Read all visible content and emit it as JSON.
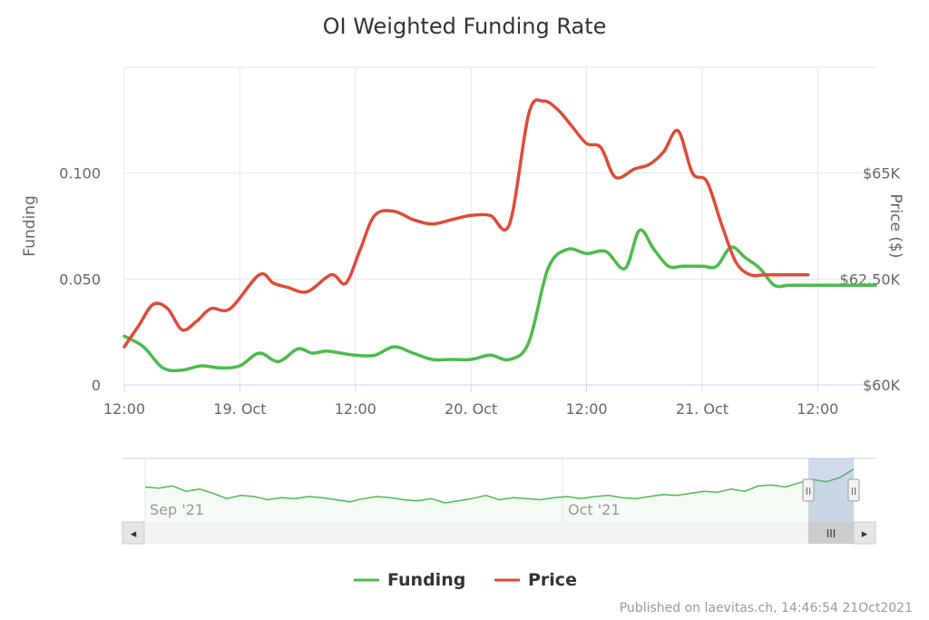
{
  "chart_data": {
    "type": "line",
    "title": "OI Weighted Funding Rate",
    "x_tick_labels": [
      "12:00",
      "19. Oct",
      "12:00",
      "20. Oct",
      "12:00",
      "21. Oct",
      "12:00"
    ],
    "y_left": {
      "label": "Funding",
      "ticks": [
        "0",
        "0.050",
        "0.100"
      ],
      "range": [
        0,
        0.15
      ]
    },
    "y_right": {
      "label": "Price ($)",
      "ticks": [
        "$60K",
        "$62.50K",
        "$65K"
      ],
      "range": [
        60000,
        67500
      ]
    },
    "x_range_hours": [
      0,
      78
    ],
    "series": [
      {
        "name": "Funding",
        "color": "#4cbb4c",
        "axis": "left",
        "x_hours": [
          0,
          2,
          4,
          6,
          8,
          10,
          12,
          14,
          16,
          18,
          19.5,
          21,
          22.5,
          24,
          26,
          28,
          30,
          32,
          34,
          36,
          38,
          40,
          42,
          44,
          46,
          48,
          50,
          52,
          53.5,
          55,
          56.5,
          58,
          60,
          61.5,
          63,
          64.5,
          66,
          67.5,
          69,
          70.5,
          72,
          74,
          76,
          78
        ],
        "values": [
          0.023,
          0.018,
          0.008,
          0.007,
          0.009,
          0.008,
          0.009,
          0.015,
          0.011,
          0.017,
          0.015,
          0.016,
          0.015,
          0.014,
          0.014,
          0.018,
          0.015,
          0.012,
          0.012,
          0.012,
          0.014,
          0.012,
          0.02,
          0.055,
          0.064,
          0.062,
          0.063,
          0.055,
          0.073,
          0.064,
          0.056,
          0.056,
          0.056,
          0.056,
          0.065,
          0.06,
          0.055,
          0.047,
          0.047,
          0.047,
          0.047,
          0.047,
          0.047,
          0.047
        ]
      },
      {
        "name": "Price",
        "color": "#dd4b39",
        "axis": "right",
        "x_hours": [
          0,
          1.5,
          3,
          4.5,
          6,
          7.5,
          9,
          11,
          14,
          15.5,
          17,
          19,
          21.5,
          23,
          24.5,
          26,
          28,
          30,
          32,
          34,
          36,
          38,
          40,
          42,
          43.5,
          45,
          46.5,
          48,
          49.5,
          51,
          53,
          54.5,
          56,
          57.5,
          59,
          60.5,
          62,
          63.5,
          65,
          66.5,
          68,
          69.5,
          71
        ],
        "values": [
          60.9,
          61.4,
          61.9,
          61.8,
          61.3,
          61.5,
          61.8,
          61.8,
          62.6,
          62.4,
          62.3,
          62.2,
          62.6,
          62.4,
          63.2,
          64.0,
          64.1,
          63.9,
          63.8,
          63.9,
          64.0,
          64.0,
          63.8,
          66.4,
          66.7,
          66.5,
          66.1,
          65.7,
          65.6,
          64.9,
          65.1,
          65.2,
          65.5,
          66.0,
          65.0,
          64.8,
          63.8,
          62.9,
          62.6,
          62.6,
          62.6,
          62.6,
          62.6
        ]
      }
    ],
    "navigator": {
      "labels": [
        "Sep '21",
        "Oct '21"
      ],
      "values": [
        0.033,
        0.032,
        0.034,
        0.029,
        0.031,
        0.027,
        0.022,
        0.025,
        0.024,
        0.021,
        0.023,
        0.022,
        0.024,
        0.023,
        0.021,
        0.019,
        0.022,
        0.024,
        0.023,
        0.021,
        0.02,
        0.022,
        0.018,
        0.02,
        0.022,
        0.025,
        0.021,
        0.023,
        0.022,
        0.021,
        0.023,
        0.024,
        0.022,
        0.024,
        0.025,
        0.023,
        0.022,
        0.024,
        0.026,
        0.025,
        0.027,
        0.029,
        0.028,
        0.031,
        0.029,
        0.034,
        0.035,
        0.033,
        0.037,
        0.04,
        0.038,
        0.042,
        0.05
      ]
    },
    "legend": {
      "placement": "bottom",
      "items": [
        "Funding",
        "Price"
      ]
    },
    "grid": true
  },
  "credits": "Published on laevitas.ch, 14:46:54 21Oct2021",
  "scrollbar": {
    "left_arrow": "◂",
    "right_arrow": "▸",
    "grip": "III"
  },
  "handle_glyph": "II"
}
